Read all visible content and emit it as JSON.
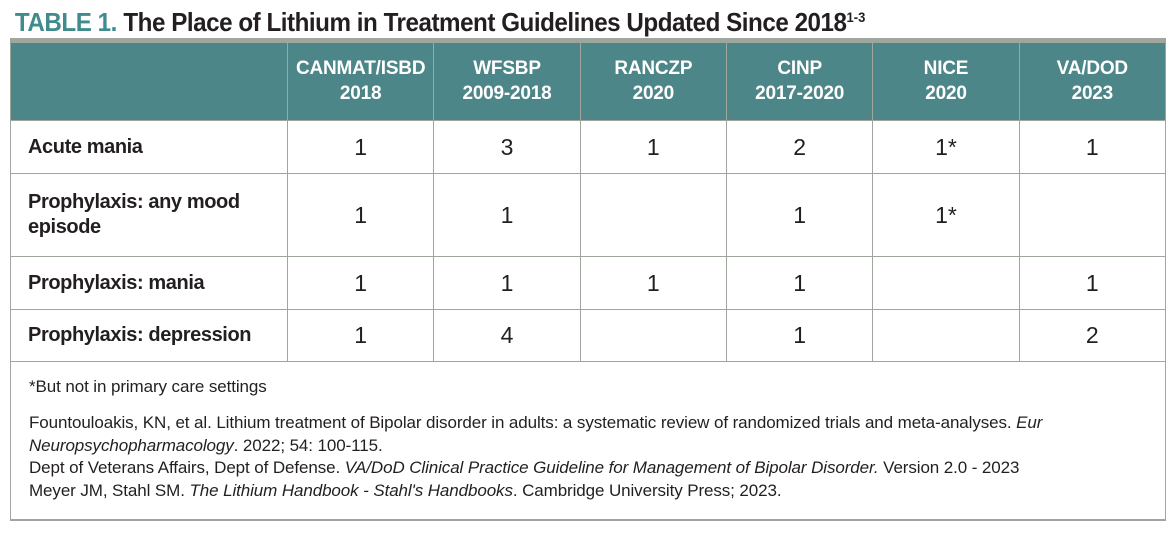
{
  "title": {
    "tag": "TABLE 1.",
    "text": "The Place of Lithium in Treatment Guidelines Updated Since 2018",
    "sup": "1-3"
  },
  "colors": {
    "teal": "#4d8688",
    "title_teal": "#3f8b8e",
    "border": "#9ea69d",
    "text": "#231f20"
  },
  "table": {
    "columns": [
      {
        "name": "CANMAT/ISBD",
        "years": "2018"
      },
      {
        "name": "WFSBP",
        "years": "2009-2018"
      },
      {
        "name": "RANCZP",
        "years": "2020"
      },
      {
        "name": "CINP",
        "years": "2017-2020"
      },
      {
        "name": "NICE",
        "years": "2020"
      },
      {
        "name": "VA/DOD",
        "years": "2023"
      }
    ],
    "rows": [
      {
        "label": "Acute mania",
        "values": [
          "1",
          "3",
          "1",
          "2",
          "1*",
          "1"
        ]
      },
      {
        "label": "Prophylaxis: any mood episode",
        "values": [
          "1",
          "1",
          "",
          "1",
          "1*",
          ""
        ]
      },
      {
        "label": "Prophylaxis: mania",
        "values": [
          "1",
          "1",
          "1",
          "1",
          "",
          "1"
        ]
      },
      {
        "label": "Prophylaxis: depression",
        "values": [
          "1",
          "4",
          "",
          "1",
          "",
          "2"
        ]
      }
    ],
    "footnote": "*But not in primary care settings",
    "references": [
      [
        {
          "text": "Fountouloakis, KN, et al. Lithium treatment of Bipolar disorder in adults: a systematic review of randomized trials and meta-analyses. ",
          "italic": false
        },
        {
          "text": "Eur Neuropsychopharmacology",
          "italic": true
        },
        {
          "text": ". 2022; 54: 100-115.",
          "italic": false
        }
      ],
      [
        {
          "text": "Dept of Veterans Affairs, Dept of Defense. ",
          "italic": false
        },
        {
          "text": "VA/DoD Clinical Practice Guideline for Management of Bipolar Disorder.",
          "italic": true
        },
        {
          "text": " Version 2.0 - 2023",
          "italic": false
        }
      ],
      [
        {
          "text": "Meyer JM, Stahl SM. ",
          "italic": false
        },
        {
          "text": "The Lithium Handbook - Stahl's Handbooks",
          "italic": true
        },
        {
          "text": ". Cambridge University Press; 2023.",
          "italic": false
        }
      ]
    ]
  }
}
